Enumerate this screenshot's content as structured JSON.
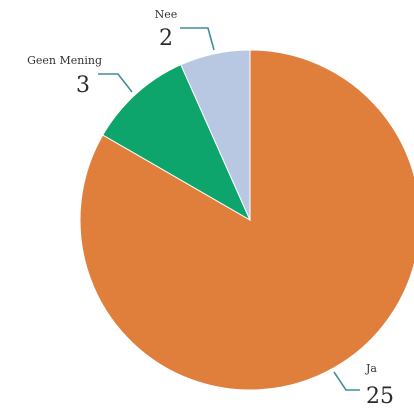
{
  "chart_data": {
    "type": "pie",
    "slices": [
      {
        "label": "Ja",
        "value": 25,
        "color": "#E07F3C"
      },
      {
        "label": "Geen Mening",
        "value": 3,
        "color": "#0DA56B"
      },
      {
        "label": "Nee",
        "value": 2,
        "color": "#B8C7E2"
      }
    ],
    "start_angle_deg": 0,
    "direction": "clockwise",
    "title": "",
    "legend": "none",
    "leader_line_color": "#3F8F9A"
  }
}
